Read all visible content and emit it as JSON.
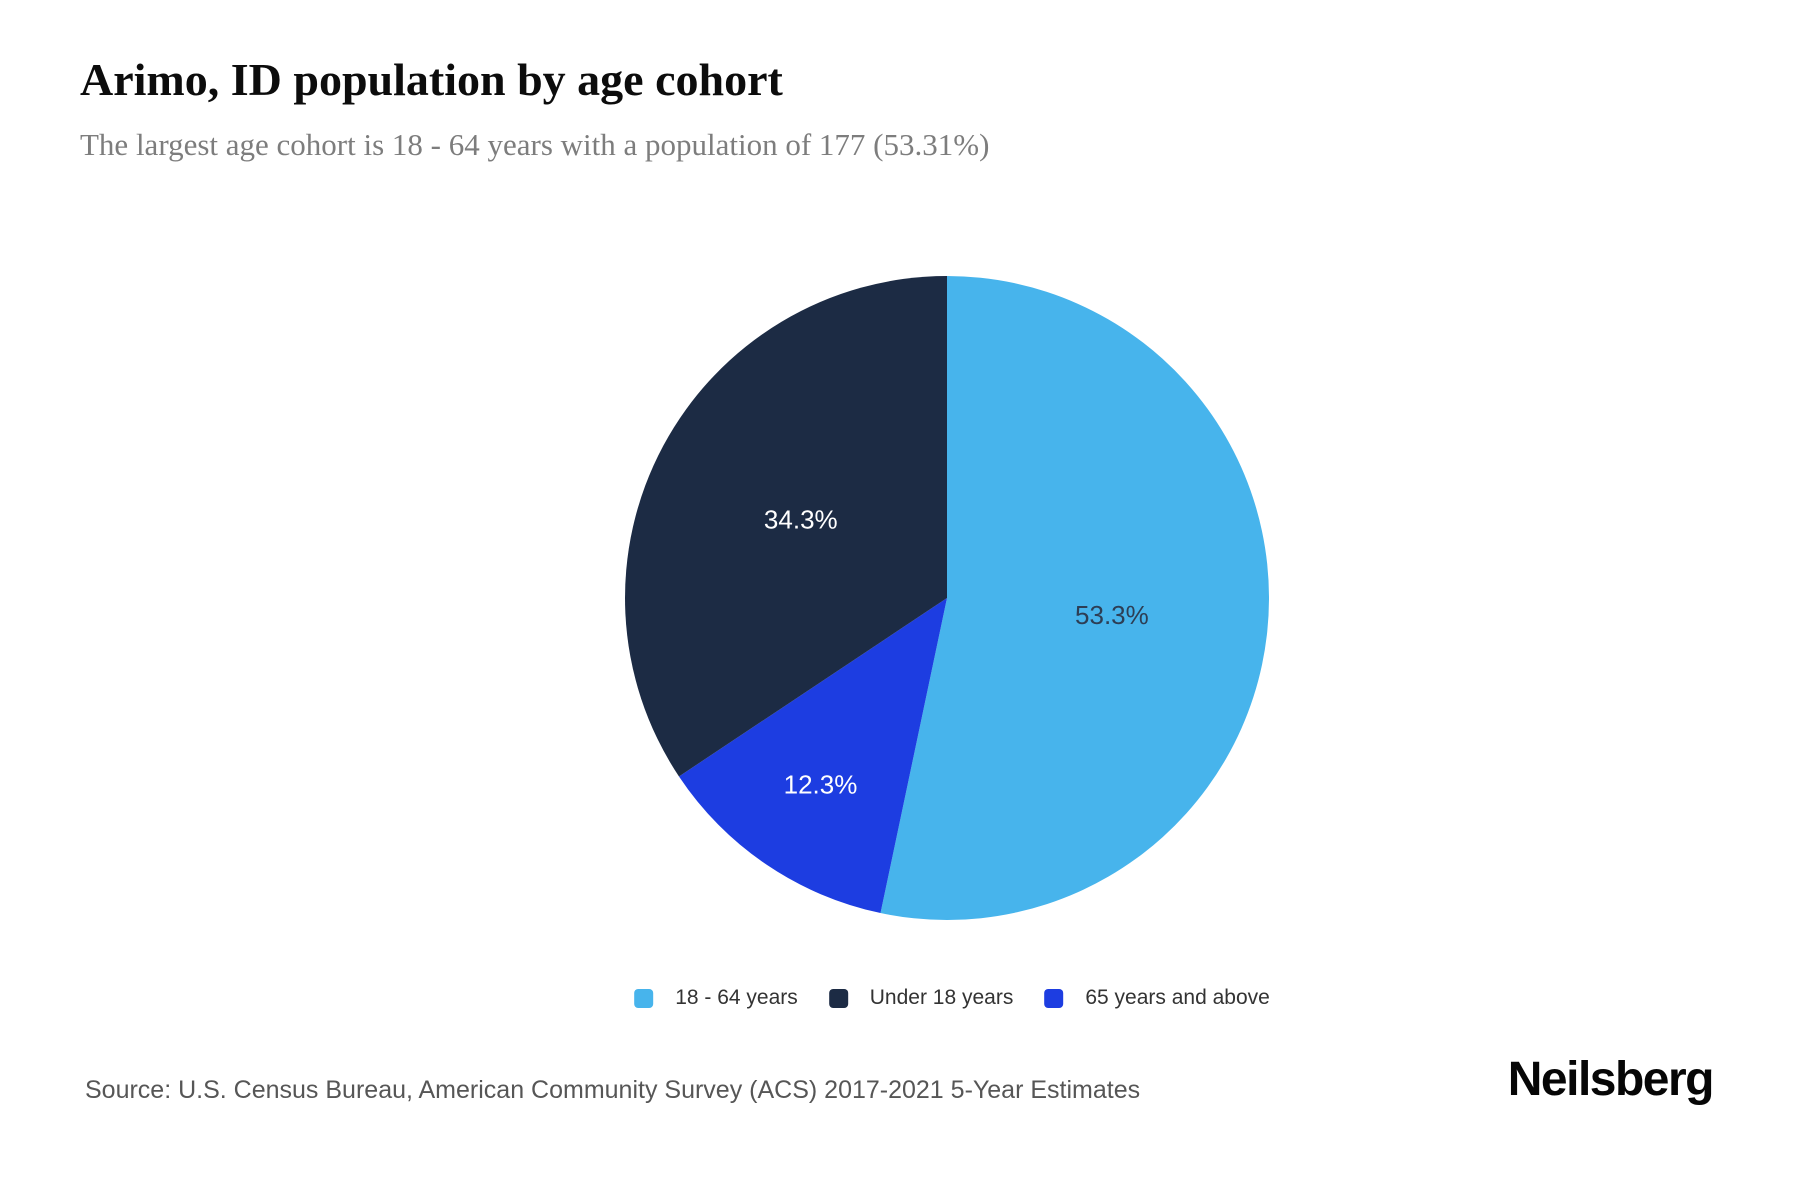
{
  "header": {
    "title": "Arimo, ID population by age cohort",
    "subtitle": "The largest age cohort is 18 - 64 years with a population of 177 (53.31%)"
  },
  "chart_data": {
    "type": "pie",
    "title": "Arimo, ID population by age cohort",
    "start_angle_deg": 0,
    "direction": "clockwise",
    "slices": [
      {
        "name": "18 - 64 years",
        "value": 53.31,
        "display": "53.3%",
        "color": "#47b4ec",
        "label_color": "#2d3e55"
      },
      {
        "name": "65 years and above",
        "value": 12.34,
        "display": "12.3%",
        "color": "#1d3de1",
        "label_color": "#ffffff"
      },
      {
        "name": "Under 18 years",
        "value": 34.35,
        "display": "34.3%",
        "color": "#1c2b44",
        "label_color": "#ffffff"
      }
    ],
    "legend": [
      {
        "label": "18 - 64 years",
        "color": "#47b4ec"
      },
      {
        "label": "Under 18 years",
        "color": "#1c2b44"
      },
      {
        "label": "65 years and above",
        "color": "#1d3de1"
      }
    ],
    "legend_position": "bottom"
  },
  "footer": {
    "source": "Source: U.S. Census Bureau, American Community Survey (ACS) 2017-2021 5-Year Estimates",
    "brand": "Neilsberg"
  }
}
